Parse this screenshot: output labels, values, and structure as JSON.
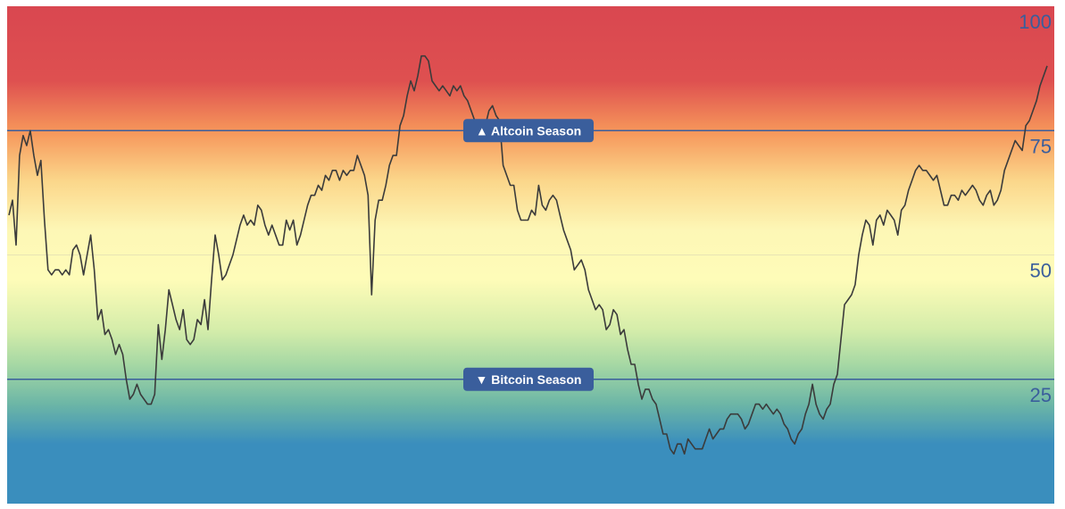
{
  "chart_data": {
    "type": "line",
    "ylim": [
      0,
      100
    ],
    "yticks": [
      {
        "value": 100,
        "label": "100"
      },
      {
        "value": 75,
        "label": "75"
      },
      {
        "value": 50,
        "label": "50"
      },
      {
        "value": 25,
        "label": "25"
      }
    ],
    "grid": true,
    "background_gradient": [
      {
        "value": 100,
        "color": "#d94750"
      },
      {
        "value": 85,
        "color": "#de5050"
      },
      {
        "value": 75,
        "color": "#f6955a"
      },
      {
        "value": 65,
        "color": "#fbd68a"
      },
      {
        "value": 55,
        "color": "#fdf7b6"
      },
      {
        "value": 45,
        "color": "#fefcb8"
      },
      {
        "value": 35,
        "color": "#d5edaa"
      },
      {
        "value": 28,
        "color": "#a6d8a4"
      },
      {
        "value": 20,
        "color": "#6cb6a6"
      },
      {
        "value": 12,
        "color": "#3a8ebd"
      },
      {
        "value": 0,
        "color": "#3a8ebd"
      }
    ],
    "thresholds": [
      {
        "name": "altcoin",
        "value": 75,
        "label": "▲ Altcoin Season",
        "color": "#3a5e9c"
      },
      {
        "name": "bitcoin",
        "value": 25,
        "label": "▼ Bitcoin Season",
        "color": "#3a5e9c"
      }
    ],
    "series": [
      {
        "color": "#3b3b3b",
        "values": [
          58,
          61,
          52,
          70,
          74,
          72,
          75,
          70,
          66,
          69,
          57,
          47,
          46,
          47,
          47,
          46,
          47,
          46,
          51,
          52,
          50,
          46,
          50,
          54,
          47,
          37,
          39,
          34,
          35,
          33,
          30,
          32,
          30,
          25,
          21,
          22,
          24,
          22,
          21,
          20,
          20,
          22,
          36,
          29,
          35,
          43,
          40,
          37,
          35,
          39,
          33,
          32,
          33,
          37,
          36,
          41,
          35,
          45,
          54,
          50,
          45,
          46,
          48,
          50,
          53,
          56,
          58,
          56,
          57,
          56,
          60,
          59,
          56,
          54,
          56,
          54,
          52,
          52,
          57,
          55,
          57,
          52,
          54,
          57,
          60,
          62,
          62,
          64,
          63,
          66,
          65,
          67,
          67,
          65,
          67,
          66,
          67,
          67,
          70,
          68,
          66,
          62,
          42,
          57,
          61,
          61,
          64,
          68,
          70,
          70,
          76,
          78,
          82,
          85,
          83,
          86,
          90,
          90,
          89,
          85,
          84,
          83,
          84,
          83,
          82,
          84,
          83,
          84,
          82,
          81,
          79,
          77,
          73,
          76,
          76,
          79,
          80,
          78,
          77,
          68,
          66,
          64,
          64,
          59,
          57,
          57,
          57,
          59,
          58,
          64,
          60,
          59,
          61,
          62,
          61,
          58,
          55,
          53,
          51,
          47,
          48,
          49,
          47,
          43,
          41,
          39,
          40,
          39,
          35,
          36,
          39,
          38,
          34,
          35,
          31,
          28,
          28,
          24,
          21,
          23,
          23,
          21,
          20,
          17,
          14,
          14,
          11,
          10,
          12,
          12,
          10,
          13,
          12,
          11,
          11,
          11,
          13,
          15,
          13,
          14,
          15,
          15,
          17,
          18,
          18,
          18,
          17,
          15,
          16,
          18,
          20,
          20,
          19,
          20,
          19,
          18,
          19,
          18,
          16,
          15,
          13,
          12,
          14,
          15,
          18,
          20,
          24,
          20,
          18,
          17,
          19,
          20,
          24,
          26,
          33,
          40,
          41,
          42,
          44,
          50,
          54,
          57,
          56,
          52,
          57,
          58,
          56,
          59,
          58,
          57,
          54,
          59,
          60,
          63,
          65,
          67,
          68,
          67,
          67,
          66,
          65,
          66,
          63,
          60,
          60,
          62,
          62,
          61,
          63,
          62,
          63,
          64,
          63,
          61,
          60,
          62,
          63,
          60,
          61,
          63,
          67,
          69,
          71,
          73,
          72,
          71,
          76,
          77,
          79,
          81,
          84,
          86,
          88
        ]
      }
    ]
  }
}
